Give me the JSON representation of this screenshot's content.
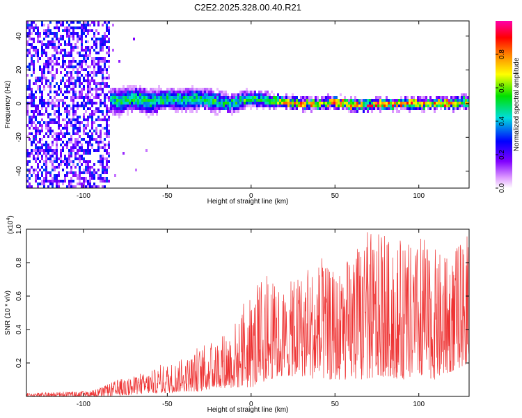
{
  "figure_title": "C2E2.2025.328.00.40.R21",
  "chart_data": [
    {
      "type": "heatmap",
      "title": "C2E2.2025.328.00.40.R21",
      "xlabel": "Height of straight line (km)",
      "ylabel": "Frequency (Hz)",
      "xlim": [
        -134,
        130
      ],
      "ylim": [
        -50,
        49
      ],
      "xticks": [
        -100,
        -50,
        0,
        50,
        100
      ],
      "yticks": [
        -40,
        -20,
        0,
        20,
        40
      ],
      "noise_region_x": [
        -134,
        -84
      ],
      "noise_level": 0.3,
      "ridge": [
        {
          "x": -88,
          "y": 4,
          "amp": 0.45,
          "width": 8
        },
        {
          "x": -80,
          "y": 1,
          "amp": 0.5,
          "width": 9
        },
        {
          "x": -70,
          "y": 3,
          "amp": 0.55,
          "width": 8
        },
        {
          "x": -60,
          "y": 1,
          "amp": 0.5,
          "width": 9
        },
        {
          "x": -50,
          "y": 3,
          "amp": 0.55,
          "width": 7
        },
        {
          "x": -40,
          "y": 2,
          "amp": 0.5,
          "width": 8
        },
        {
          "x": -30,
          "y": 3,
          "amp": 0.55,
          "width": 7
        },
        {
          "x": -20,
          "y": 1,
          "amp": 0.55,
          "width": 7
        },
        {
          "x": -12,
          "y": 0,
          "amp": 0.5,
          "width": 6
        },
        {
          "x": -5,
          "y": 2,
          "amp": 0.55,
          "width": 6
        },
        {
          "x": 0,
          "y": 3,
          "amp": 0.6,
          "width": 5
        },
        {
          "x": 10,
          "y": 2,
          "amp": 0.65,
          "width": 5
        },
        {
          "x": 20,
          "y": 1,
          "amp": 0.75,
          "width": 4
        },
        {
          "x": 30,
          "y": 0,
          "amp": 0.8,
          "width": 4
        },
        {
          "x": 40,
          "y": 0,
          "amp": 0.8,
          "width": 4
        },
        {
          "x": 50,
          "y": 1,
          "amp": 0.85,
          "width": 4
        },
        {
          "x": 60,
          "y": -1,
          "amp": 0.8,
          "width": 4
        },
        {
          "x": 70,
          "y": -1,
          "amp": 0.85,
          "width": 4
        },
        {
          "x": 80,
          "y": 0,
          "amp": 0.85,
          "width": 4
        },
        {
          "x": 90,
          "y": 0,
          "amp": 0.85,
          "width": 4
        },
        {
          "x": 100,
          "y": 0,
          "amp": 0.85,
          "width": 4
        },
        {
          "x": 110,
          "y": 0,
          "amp": 0.85,
          "width": 4
        },
        {
          "x": 120,
          "y": 0,
          "amp": 0.85,
          "width": 4
        },
        {
          "x": 130,
          "y": 1,
          "amp": 0.85,
          "width": 4
        }
      ],
      "colorbar": {
        "label": "Normalized spectral amplitude",
        "range": [
          0.0,
          1.0
        ],
        "ticks": [
          0.0,
          0.2,
          0.4,
          0.6,
          0.8
        ],
        "tick_labels": [
          "0.0",
          "0.2",
          "0.4",
          "0.6",
          "0.8"
        ],
        "colormap": "rainbow: white-lavender, violet, blue, cyan, green, yellow, orange, red, magenta"
      }
    },
    {
      "type": "line",
      "xlabel": "Height of straight line (km)",
      "ylabel": "SNR (10 * v/v)",
      "scale_label": "(x10",
      "scale_exponent": "4",
      "xlim": [
        -134,
        130
      ],
      "ylim": [
        0.0,
        1.0
      ],
      "xticks": [
        -100,
        -50,
        0,
        50,
        100
      ],
      "yticks": [
        0.2,
        0.4,
        0.6,
        0.8,
        1.0
      ],
      "series": [
        {
          "name": "SNR",
          "color": "#ee3333",
          "envelope_x": [
            -134,
            -100,
            -90,
            -80,
            -70,
            -60,
            -50,
            -40,
            -30,
            -20,
            -10,
            0,
            10,
            20,
            30,
            40,
            50,
            60,
            70,
            80,
            90,
            100,
            110,
            120,
            130
          ],
          "envelope_max": [
            0.02,
            0.03,
            0.05,
            0.1,
            0.12,
            0.15,
            0.2,
            0.22,
            0.3,
            0.35,
            0.45,
            0.6,
            0.7,
            0.65,
            0.75,
            0.8,
            0.75,
            0.85,
            1.0,
            0.95,
            0.9,
            0.92,
            0.88,
            0.85,
            1.0
          ],
          "envelope_min": [
            0.0,
            0.0,
            0.0,
            0.0,
            0.01,
            0.02,
            0.02,
            0.03,
            0.03,
            0.05,
            0.05,
            0.05,
            0.1,
            0.12,
            0.12,
            0.1,
            0.1,
            0.1,
            0.1,
            0.12,
            0.1,
            0.12,
            0.1,
            0.15,
            0.2
          ]
        }
      ]
    }
  ]
}
